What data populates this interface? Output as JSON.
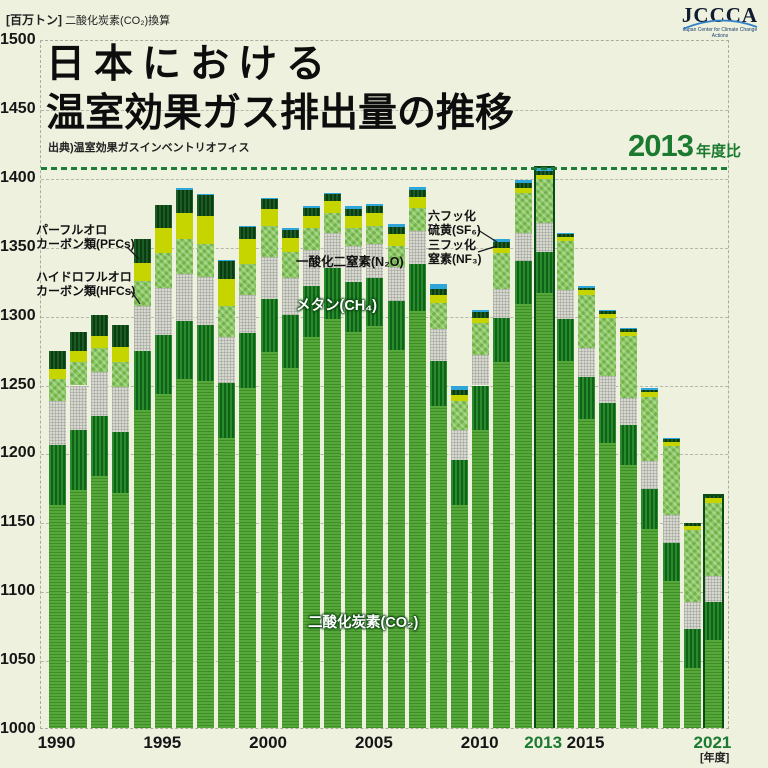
{
  "page": {
    "unit_prefix": "[百万トン]",
    "unit_suffix": "二酸化炭素(CO₂)換算",
    "title_line1": "日本における",
    "title_line2": "温室効果ガス排出量の推移",
    "source": "出典)温室効果ガスインベントリオフィス",
    "axis_year_label": "[年度]",
    "baseline_big": "2013",
    "baseline_small": "年度比"
  },
  "logo": {
    "name": "JCCCA",
    "caption": "Japan Center for Climate Change Actions"
  },
  "annotations": {
    "pfcs_line1": "パーフルオロ",
    "pfcs_line2": "カーボン類(PFCs)",
    "hfcs_line1": "ハイドロフルオロ",
    "hfcs_line2": "カーボン類(HFCs)",
    "n2o": "一酸化二窒素(N₂O)",
    "ch4": "メタン(CH₄)",
    "co2": "二酸化炭素(CO₂)",
    "sf6_line1": "六フッ化",
    "sf6_line2": "硫黄(SF₆)",
    "nf3_line1": "三フッ化",
    "nf3_line2": "窒素(NF₃)"
  },
  "chart_data": {
    "type": "bar",
    "stacked": true,
    "title": "日本における温室効果ガス排出量の推移",
    "ylabel": "百万トン(CO₂換算)",
    "xlabel": "年度",
    "ylim": [
      1000,
      1500
    ],
    "ytick_interval": 50,
    "yticks": [
      1500,
      1450,
      1400,
      1350,
      1300,
      1250,
      1200,
      1150,
      1100,
      1050,
      1000
    ],
    "grid": true,
    "x": [
      1990,
      1991,
      1992,
      1993,
      1994,
      1995,
      1996,
      1997,
      1998,
      1999,
      2000,
      2001,
      2002,
      2003,
      2004,
      2005,
      2006,
      2007,
      2008,
      2009,
      2010,
      2011,
      2012,
      2013,
      2014,
      2015,
      2016,
      2017,
      2018,
      2019,
      2020,
      2021
    ],
    "xticks": [
      1990,
      1995,
      2000,
      2005,
      2010,
      2013,
      2015,
      2021
    ],
    "xticks_green": [
      2013,
      2021
    ],
    "highlighted_bars": [
      2013,
      2021
    ],
    "baseline_line": {
      "value": 1408,
      "label": "2013年度比",
      "color": "#1d7c35"
    },
    "totals": [
      1275,
      1289,
      1301,
      1294,
      1356,
      1381,
      1393,
      1389,
      1341,
      1366,
      1386,
      1364,
      1380,
      1390,
      1380,
      1382,
      1367,
      1394,
      1324,
      1250,
      1305,
      1356,
      1399,
      1408,
      1361,
      1322,
      1305,
      1292,
      1248,
      1212,
      1150,
      1170
    ],
    "series": [
      {
        "name": "二酸化炭素(CO₂)",
        "key": "co2",
        "color": "#4f9e31",
        "values": [
          1163,
          1174,
          1184,
          1172,
          1232,
          1244,
          1255,
          1253,
          1212,
          1248,
          1274,
          1263,
          1285,
          1298,
          1289,
          1293,
          1276,
          1304,
          1235,
          1163,
          1218,
          1267,
          1309,
          1317,
          1268,
          1226,
          1208,
          1192,
          1146,
          1108,
          1045,
          1065
        ]
      },
      {
        "name": "メタン(CH₄)",
        "key": "ch4",
        "color": "#1d7c23",
        "values": [
          44,
          44,
          44,
          44,
          43,
          43,
          42,
          41,
          40,
          40,
          39,
          38,
          37,
          37,
          36,
          35,
          35,
          34,
          33,
          33,
          32,
          32,
          31,
          30,
          30,
          30,
          29,
          29,
          29,
          28,
          28,
          28
        ]
      },
      {
        "name": "一酸化二窒素(N₂O)",
        "key": "n2o",
        "color": "#d7d9d0",
        "values": [
          32,
          32,
          32,
          33,
          33,
          34,
          34,
          35,
          33,
          28,
          30,
          27,
          26,
          26,
          26,
          25,
          25,
          24,
          23,
          22,
          22,
          21,
          21,
          21,
          21,
          21,
          20,
          20,
          20,
          20,
          20,
          19
        ]
      },
      {
        "name": "ハイドロフルオロカーボン類(HFCs)",
        "key": "hfcs",
        "color": "#84c55c",
        "values": [
          16,
          17,
          17,
          18,
          18,
          25,
          25,
          24,
          23,
          22,
          23,
          19,
          16,
          14,
          13,
          13,
          15,
          17,
          19,
          21,
          23,
          26,
          29,
          32,
          36,
          39,
          42,
          45,
          47,
          50,
          52,
          53
        ]
      },
      {
        "name": "パーフルオロカーボン類(PFCs)",
        "key": "pfcs",
        "color": "#c6d400",
        "values": [
          7,
          8,
          9,
          11,
          13,
          18,
          19,
          20,
          19,
          18,
          12,
          10,
          9,
          9,
          9,
          9,
          9,
          8,
          6,
          4,
          4,
          4,
          3,
          3,
          3,
          3,
          3,
          3,
          3,
          3,
          3,
          3
        ]
      },
      {
        "name": "六フッ化硫黄(SF₆)",
        "key": "sf6",
        "color": "#174f20",
        "values": [
          13,
          14,
          15,
          16,
          17,
          17,
          17,
          15,
          13,
          9,
          7,
          6,
          6,
          5,
          5,
          5,
          5,
          5,
          4,
          4,
          4,
          4,
          4,
          3,
          2,
          2,
          2,
          2,
          2,
          2,
          2,
          2
        ]
      },
      {
        "name": "三フッ化窒素(NF₃)",
        "key": "nf3",
        "color": "#2ea6d9",
        "values": [
          0,
          0,
          0,
          0,
          0,
          0,
          1,
          1,
          1,
          1,
          1,
          1,
          1,
          1,
          2,
          2,
          2,
          2,
          4,
          3,
          2,
          2,
          2,
          2,
          1,
          1,
          1,
          1,
          1,
          1,
          0,
          0
        ]
      }
    ]
  }
}
